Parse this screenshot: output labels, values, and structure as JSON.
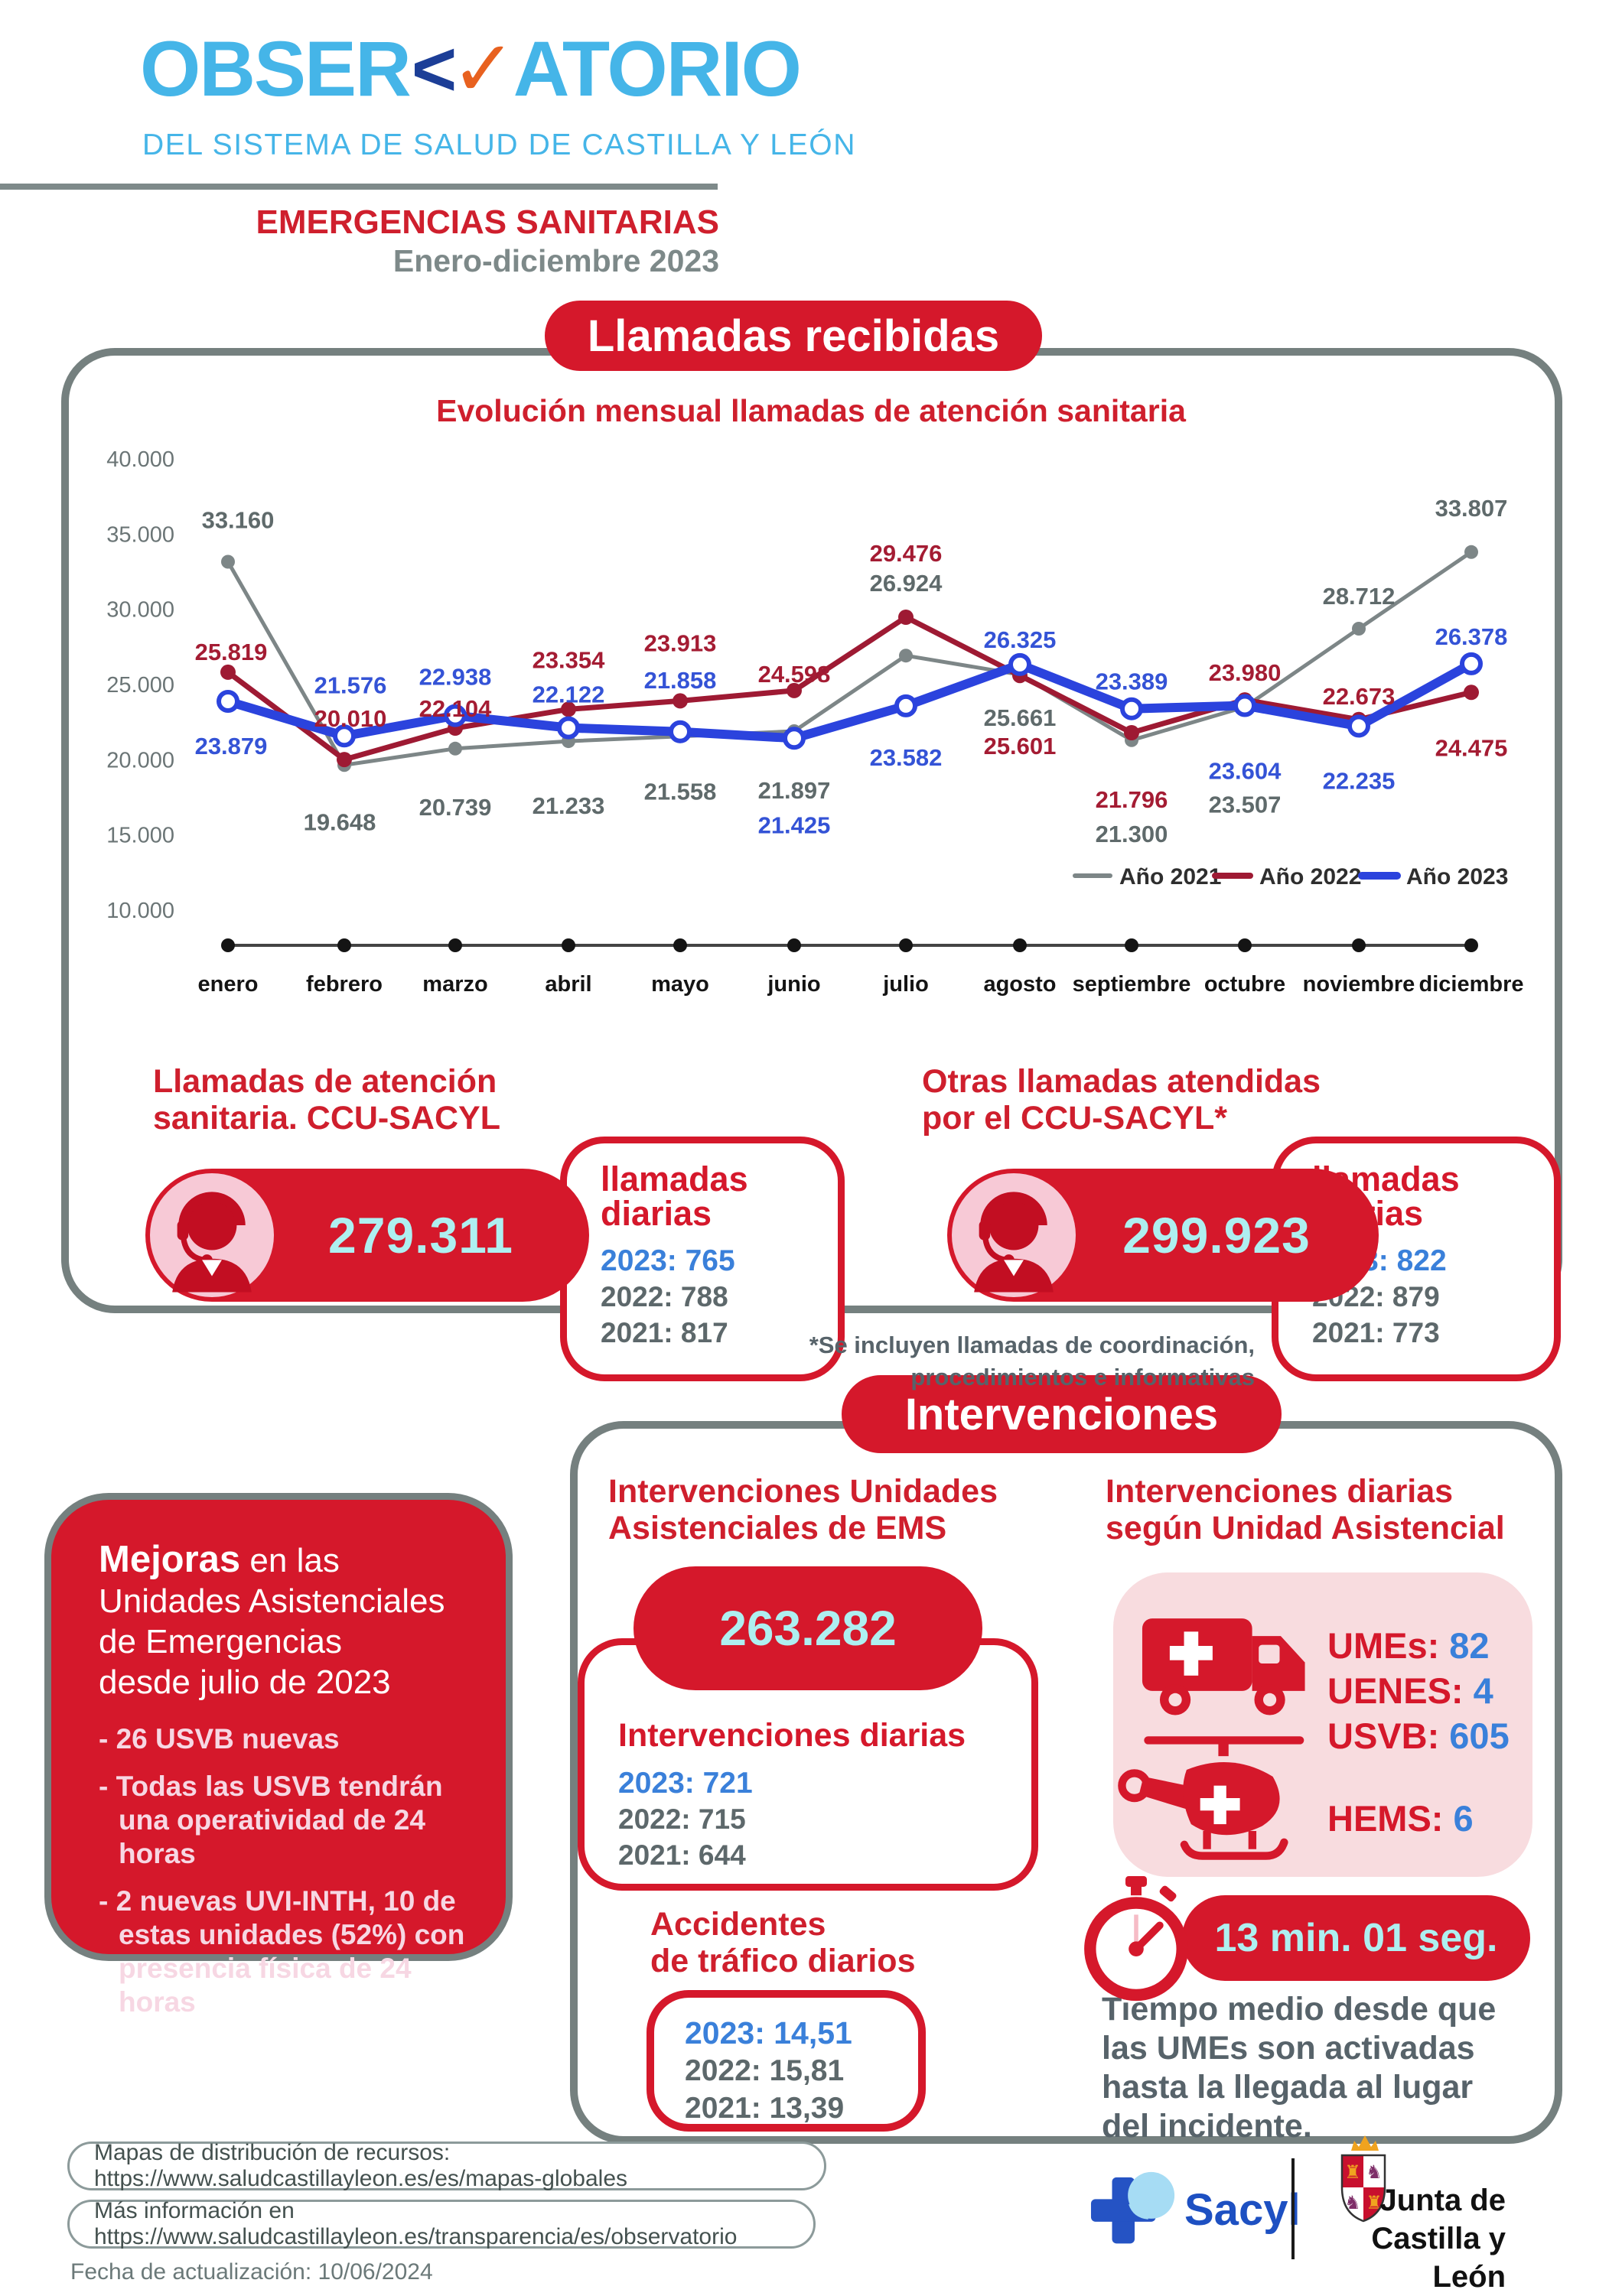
{
  "palette": {
    "red": "#d5182b",
    "dark_red_2022": "#9e1a33",
    "gray_2021": "#7d8687",
    "blue_2023": "#2b43dd",
    "label_blue": "#3a80da",
    "cyan_numbers": "#aeeff0",
    "pink_light": "#f8dcdf",
    "pink_circle": "#f7c9d6",
    "logo_light_blue": "#45b5e8",
    "logo_navy": "#1c3e97",
    "logo_orange": "#e8611f"
  },
  "header": {
    "logo_part1": "OBSER",
    "logo_mark1": "<",
    "logo_mark2": "✓",
    "logo_part2": "ATORIO",
    "logo_subtitle": "DEL SISTEMA DE SALUD DE CASTILLA Y LEÓN",
    "section_title": "EMERGENCIAS SANITARIAS",
    "period": "Enero-diciembre 2023"
  },
  "llamadas": {
    "pill_title": "Llamadas recibidas",
    "left": {
      "heading": [
        "Llamadas de atención",
        "sanitaria. CCU-SACYL"
      ],
      "total": "279.311",
      "box_title": [
        "llamadas",
        "diarias"
      ],
      "daily": [
        {
          "year": "2023",
          "value": "765"
        },
        {
          "year": "2022",
          "value": "788"
        },
        {
          "year": "2021",
          "value": "817"
        }
      ]
    },
    "right": {
      "heading": [
        "Otras llamadas atendidas",
        "por el CCU-SACYL*"
      ],
      "total": "299.923",
      "box_title": [
        "llamadas",
        "diarias"
      ],
      "daily": [
        {
          "year": "2023",
          "value": "822"
        },
        {
          "year": "2022",
          "value": "879"
        },
        {
          "year": "2021",
          "value": "773"
        }
      ],
      "footnote": [
        "*Se incluyen llamadas de coordinación,",
        "procedimientos e informativas"
      ]
    }
  },
  "chart_data": {
    "type": "line",
    "title": "Evolución mensual llamadas de atención sanitaria",
    "categories": [
      "enero",
      "febrero",
      "marzo",
      "abril",
      "mayo",
      "junio",
      "julio",
      "agosto",
      "septiembre",
      "octubre",
      "noviembre",
      "diciembre"
    ],
    "series": [
      {
        "name": "Año 2021",
        "color": "#7d8687",
        "values": [
          33160,
          19648,
          20739,
          21233,
          21558,
          21897,
          26924,
          25661,
          21300,
          23507,
          28712,
          33807
        ]
      },
      {
        "name": "Año 2022",
        "color": "#9e1a33",
        "values": [
          25819,
          20010,
          22104,
          23354,
          23913,
          24598,
          29476,
          25601,
          21796,
          23980,
          22673,
          24475
        ]
      },
      {
        "name": "Año 2023",
        "color": "#2b43dd",
        "values": [
          23879,
          21576,
          22938,
          22122,
          21858,
          21425,
          23582,
          26325,
          23389,
          23604,
          22235,
          26378
        ]
      }
    ],
    "y_ticks": [
      {
        "label": "40.000",
        "value": 40000
      },
      {
        "label": "35.000",
        "value": 35000
      },
      {
        "label": "30.000",
        "value": 30000
      },
      {
        "label": "25.000",
        "value": 25000
      },
      {
        "label": "20.000",
        "value": 20000
      },
      {
        "label": "15.000",
        "value": 15000
      },
      {
        "label": "10.000",
        "value": 10000
      }
    ],
    "ylim": [
      10000,
      40000
    ],
    "grid": false,
    "legend_position": "bottom-right",
    "point_labels": true
  },
  "intervenciones": {
    "pill_title": "Intervenciones",
    "mejoras": {
      "title_emph": "Mejoras",
      "title_lines": [
        " en las",
        "Unidades Asistenciales",
        "de Emergencias",
        "desde julio de 2023"
      ],
      "bullets": [
        "26 USVB nuevas",
        "Todas las USVB tendrán una operatividad de 24 horas",
        "2 nuevas UVI-INTH, 10 de estas unidades (52%) con presencia física de 24 horas"
      ]
    },
    "ems": {
      "heading": [
        "Intervenciones Unidades",
        "Asistenciales de EMS"
      ],
      "total": "263.282",
      "box_title": "Intervenciones diarias",
      "daily": [
        {
          "year": "2023",
          "value": "721"
        },
        {
          "year": "2022",
          "value": "715"
        },
        {
          "year": "2021",
          "value": "644"
        }
      ]
    },
    "accidentes": {
      "heading": [
        "Accidentes",
        "de tráfico diarios"
      ],
      "daily": [
        {
          "year": "2023",
          "value": "14,51"
        },
        {
          "year": "2022",
          "value": "15,81"
        },
        {
          "year": "2021",
          "value": "13,39"
        }
      ]
    },
    "unidades": {
      "heading": [
        "Intervenciones diarias",
        "según Unidad Asistencial"
      ],
      "ground_units": [
        {
          "label": "UMEs",
          "value": "82"
        },
        {
          "label": "UENES",
          "value": "4"
        },
        {
          "label": "USVB",
          "value": "605"
        }
      ],
      "air_units": [
        {
          "label": "HEMS",
          "value": "6"
        }
      ]
    },
    "tiempo": {
      "badge": "13 min. 01 seg.",
      "lines": [
        "Tiempo medio desde que",
        "las UMEs son activadas",
        "hasta la llegada al lugar",
        "del incidente."
      ]
    }
  },
  "footer": {
    "links": [
      "Mapas de distribución de recursos: https://www.saludcastillayleon.es/es/mapas-globales",
      "Más información en https://www.saludcastillayleon.es/transparencia/es/observatorio"
    ],
    "updated": "Fecha de actualización: 10/06/2024",
    "sacyl_label": "Sacyl",
    "junta_lines": [
      "Junta de",
      "Castilla y León"
    ]
  }
}
